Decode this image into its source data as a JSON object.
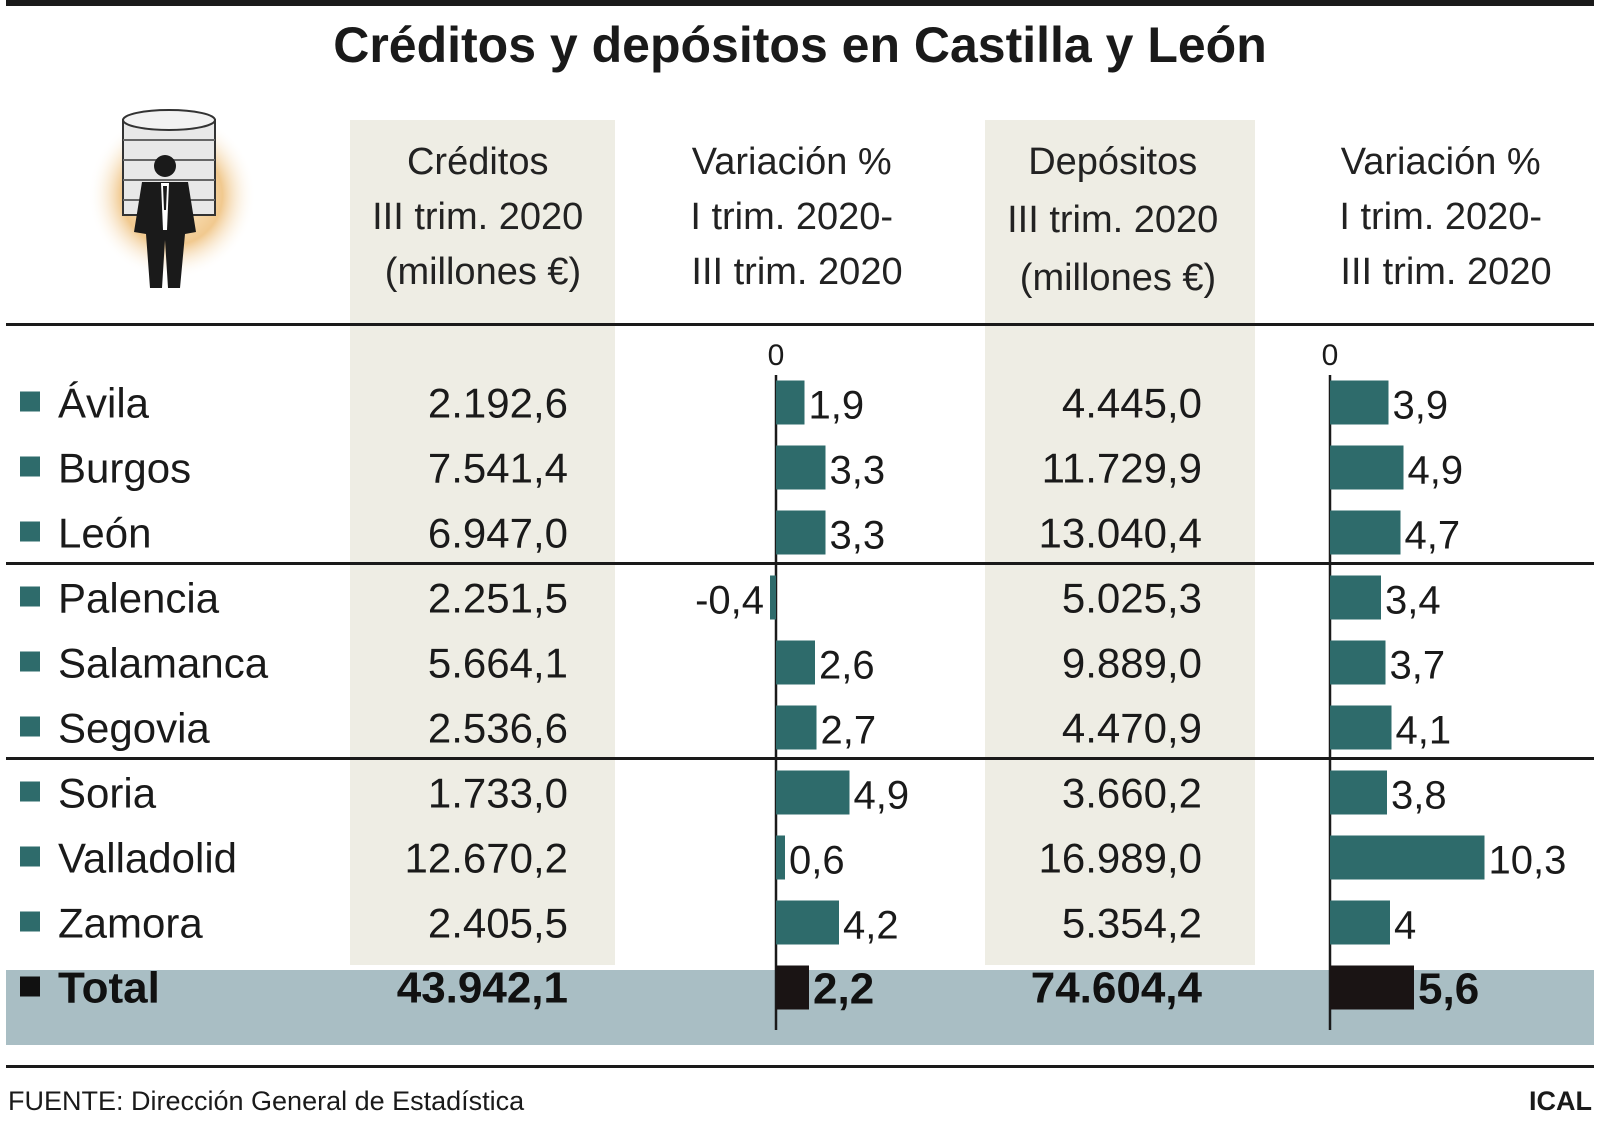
{
  "chart_data": {
    "type": "table",
    "title": "Créditos y depósitos en Castilla y León",
    "columns": [
      [
        "Créditos",
        "III trim. 2020",
        "(millones €)"
      ],
      [
        "Variación %",
        "I trim. 2020-",
        "III trim. 2020"
      ],
      [
        "Depósitos",
        "III trim. 2020",
        "(millones €)"
      ],
      [
        "Variación %",
        "I trim. 2020-",
        "III trim. 2020"
      ]
    ],
    "zero_label": "0",
    "rows": [
      {
        "province": "Ávila",
        "creditos": "2.192,6",
        "var_creditos": 1.9,
        "var_creditos_label": "1,9",
        "depositos": "4.445,0",
        "var_depositos": 3.9,
        "var_depositos_label": "3,9"
      },
      {
        "province": "Burgos",
        "creditos": "7.541,4",
        "var_creditos": 3.3,
        "var_creditos_label": "3,3",
        "depositos": "11.729,9",
        "var_depositos": 4.9,
        "var_depositos_label": "4,9"
      },
      {
        "province": "León",
        "creditos": "6.947,0",
        "var_creditos": 3.3,
        "var_creditos_label": "3,3",
        "depositos": "13.040,4",
        "var_depositos": 4.7,
        "var_depositos_label": "4,7"
      },
      {
        "province": "Palencia",
        "creditos": "2.251,5",
        "var_creditos": -0.4,
        "var_creditos_label": "-0,4",
        "depositos": "5.025,3",
        "var_depositos": 3.4,
        "var_depositos_label": "3,4"
      },
      {
        "province": "Salamanca",
        "creditos": "5.664,1",
        "var_creditos": 2.6,
        "var_creditos_label": "2,6",
        "depositos": "9.889,0",
        "var_depositos": 3.7,
        "var_depositos_label": "3,7"
      },
      {
        "province": "Segovia",
        "creditos": "2.536,6",
        "var_creditos": 2.7,
        "var_creditos_label": "2,7",
        "depositos": "4.470,9",
        "var_depositos": 4.1,
        "var_depositos_label": "4,1"
      },
      {
        "province": "Soria",
        "creditos": "1.733,0",
        "var_creditos": 4.9,
        "var_creditos_label": "4,9",
        "depositos": "3.660,2",
        "var_depositos": 3.8,
        "var_depositos_label": "3,8"
      },
      {
        "province": "Valladolid",
        "creditos": "12.670,2",
        "var_creditos": 0.6,
        "var_creditos_label": "0,6",
        "depositos": "16.989,0",
        "var_depositos": 10.3,
        "var_depositos_label": "10,3"
      },
      {
        "province": "Zamora",
        "creditos": "2.405,5",
        "var_creditos": 4.2,
        "var_creditos_label": "4,2",
        "depositos": "5.354,2",
        "var_depositos": 4,
        "var_depositos_label": "4"
      }
    ],
    "total": {
      "province": "Total",
      "creditos": "43.942,1",
      "var_creditos": 2.2,
      "var_creditos_label": "2,2",
      "depositos": "74.604,4",
      "var_depositos": 5.6,
      "var_depositos_label": "5,6"
    },
    "source": "FUENTE: Dirección General de Estadística",
    "credit": "ICAL"
  },
  "colors": {
    "bar": "#2e6b6b",
    "total_bar": "#1a1414",
    "total_band": "#a9bec4",
    "column_shade": "#eeede4",
    "bullet": "#2e6b6b",
    "rule": "#1a1a1a"
  }
}
